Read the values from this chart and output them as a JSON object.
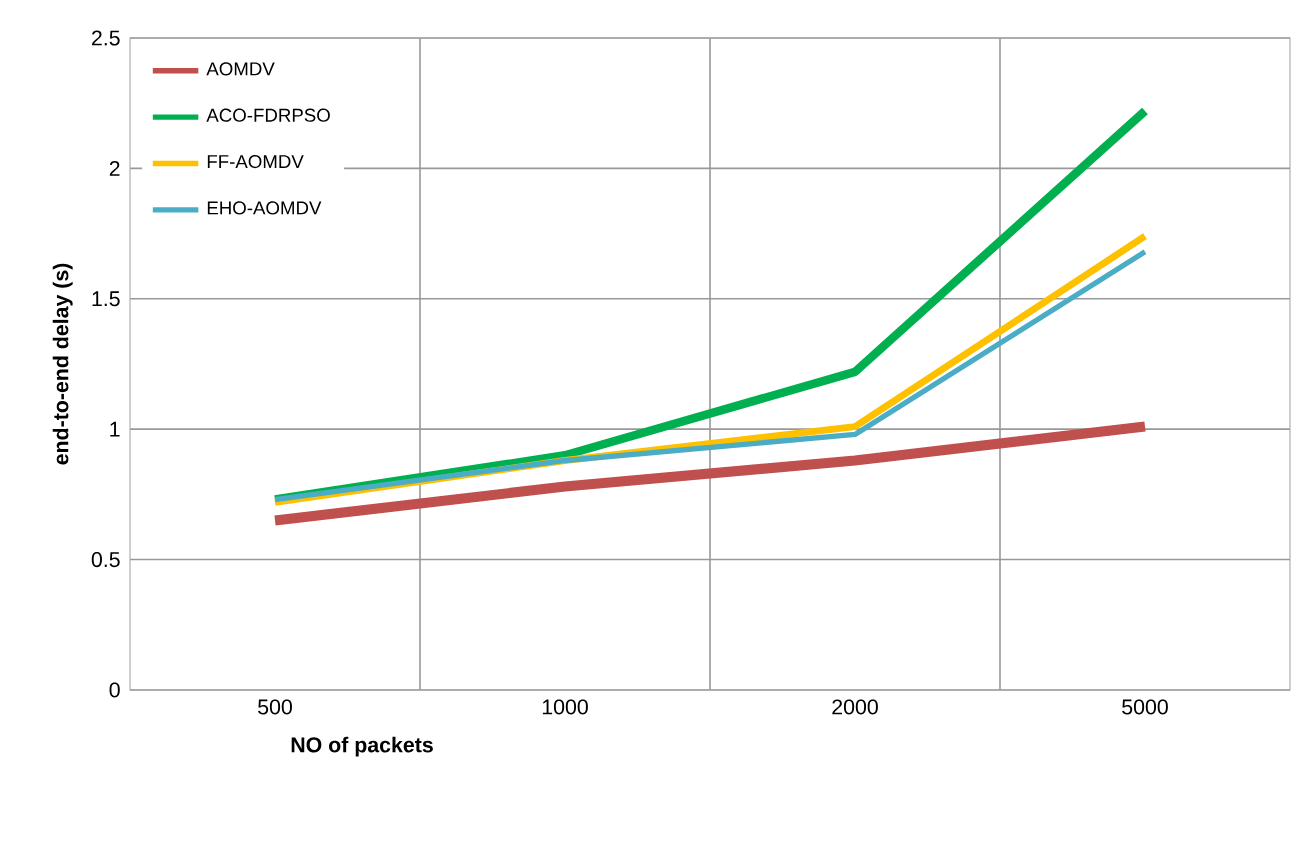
{
  "chart_data": {
    "type": "line",
    "xlabel": "NO  of packets",
    "ylabel": "end-to-end delay  (s)",
    "categories": [
      "500",
      "1000",
      "2000",
      "5000"
    ],
    "series": [
      {
        "name": "AOMDV",
        "color": "#c0504d",
        "values": [
          0.65,
          0.78,
          0.88,
          1.01
        ]
      },
      {
        "name": "ACO-FDRPSO",
        "color": "#00b050",
        "values": [
          0.73,
          0.9,
          1.22,
          2.22
        ]
      },
      {
        "name": "FF-AOMDV",
        "color": "#ffc000",
        "values": [
          0.72,
          0.88,
          1.01,
          1.74
        ]
      },
      {
        "name": "EHO-AOMDV",
        "color": "#4bacc6",
        "values": [
          0.73,
          0.88,
          0.98,
          1.68
        ]
      }
    ],
    "ylim": [
      0,
      2.5
    ],
    "yticks": [
      0,
      0.5,
      1,
      1.5,
      2,
      2.5
    ],
    "grid": true,
    "legend": "top left",
    "marker": "none",
    "line_style": "solid"
  }
}
